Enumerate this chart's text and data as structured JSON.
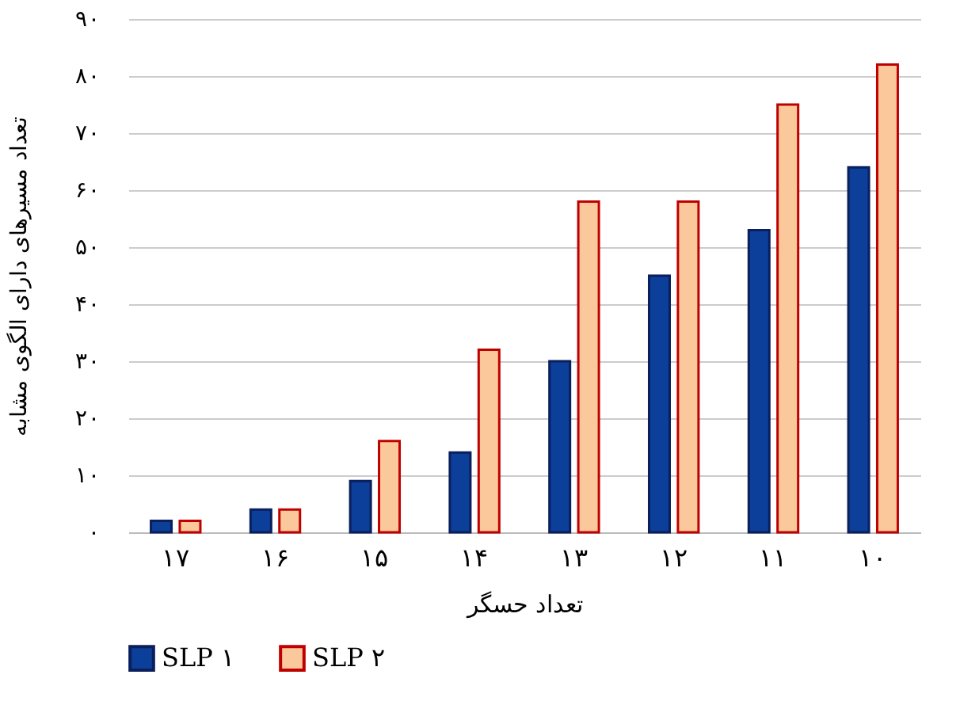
{
  "chart_data": {
    "type": "bar",
    "xlabel": "تعداد حسگر",
    "ylabel": "تعداد مسیرهای دارای الگوی مشابه",
    "categories": [
      "۱۷",
      "۱۶",
      "۱۵",
      "۱۴",
      "۱۳",
      "۱۲",
      "۱۱",
      "۱۰"
    ],
    "series": [
      {
        "name": "SLP ۱",
        "color": "#0b3f99",
        "values": [
          2,
          4,
          9,
          14,
          30,
          45,
          53,
          64
        ]
      },
      {
        "name": "SLP ۲",
        "color": "#fbc89c",
        "values": [
          2,
          4,
          16,
          32,
          58,
          58,
          75,
          82
        ]
      }
    ],
    "ylim": [
      0,
      90
    ],
    "yticks": [
      {
        "value": 0,
        "label": "۰"
      },
      {
        "value": 10,
        "label": "۱۰"
      },
      {
        "value": 20,
        "label": "۲۰"
      },
      {
        "value": 30,
        "label": "۳۰"
      },
      {
        "value": 40,
        "label": "۴۰"
      },
      {
        "value": 50,
        "label": "۵۰"
      },
      {
        "value": 60,
        "label": "۶۰"
      },
      {
        "value": 70,
        "label": "۷۰"
      },
      {
        "value": 80,
        "label": "۸۰"
      },
      {
        "value": 90,
        "label": "۹۰"
      }
    ],
    "grid": "y",
    "legend": "bottom"
  }
}
